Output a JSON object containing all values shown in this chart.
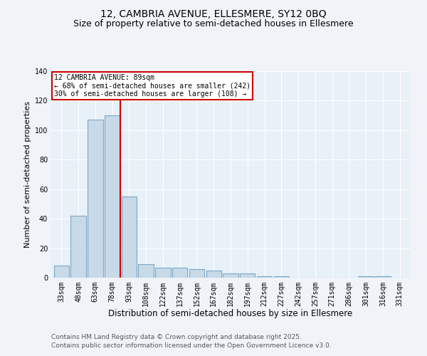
{
  "title1": "12, CAMBRIA AVENUE, ELLESMERE, SY12 0BQ",
  "title2": "Size of property relative to semi-detached houses in Ellesmere",
  "xlabel": "Distribution of semi-detached houses by size in Ellesmere",
  "ylabel": "Number of semi-detached properties",
  "categories": [
    "33sqm",
    "48sqm",
    "63sqm",
    "78sqm",
    "93sqm",
    "108sqm",
    "122sqm",
    "137sqm",
    "152sqm",
    "167sqm",
    "182sqm",
    "197sqm",
    "212sqm",
    "227sqm",
    "242sqm",
    "257sqm",
    "271sqm",
    "286sqm",
    "301sqm",
    "316sqm",
    "331sqm"
  ],
  "values": [
    8,
    42,
    107,
    110,
    55,
    9,
    7,
    7,
    6,
    5,
    3,
    3,
    1,
    1,
    0,
    0,
    0,
    0,
    1,
    1,
    0
  ],
  "bar_color": "#c8d9e8",
  "bar_edge_color": "#7aaac8",
  "vline_color": "#cc0000",
  "annotation_title": "12 CAMBRIA AVENUE: 89sqm",
  "annotation_line1": "← 68% of semi-detached houses are smaller (242)",
  "annotation_line2": "30% of semi-detached houses are larger (108) →",
  "annotation_box_color": "#ffffff",
  "annotation_box_edge": "#cc0000",
  "ylim": [
    0,
    140
  ],
  "yticks": [
    0,
    20,
    40,
    60,
    80,
    100,
    120,
    140
  ],
  "footer1": "Contains HM Land Registry data © Crown copyright and database right 2025.",
  "footer2": "Contains public sector information licensed under the Open Government Licence v3.0.",
  "bg_color": "#f0f4f8",
  "plot_bg_color": "#e8f0f8",
  "grid_color": "#ffffff",
  "title1_fontsize": 10,
  "title2_fontsize": 9,
  "xlabel_fontsize": 8.5,
  "ylabel_fontsize": 8,
  "tick_fontsize": 7,
  "ann_fontsize": 7,
  "footer_fontsize": 6.5
}
